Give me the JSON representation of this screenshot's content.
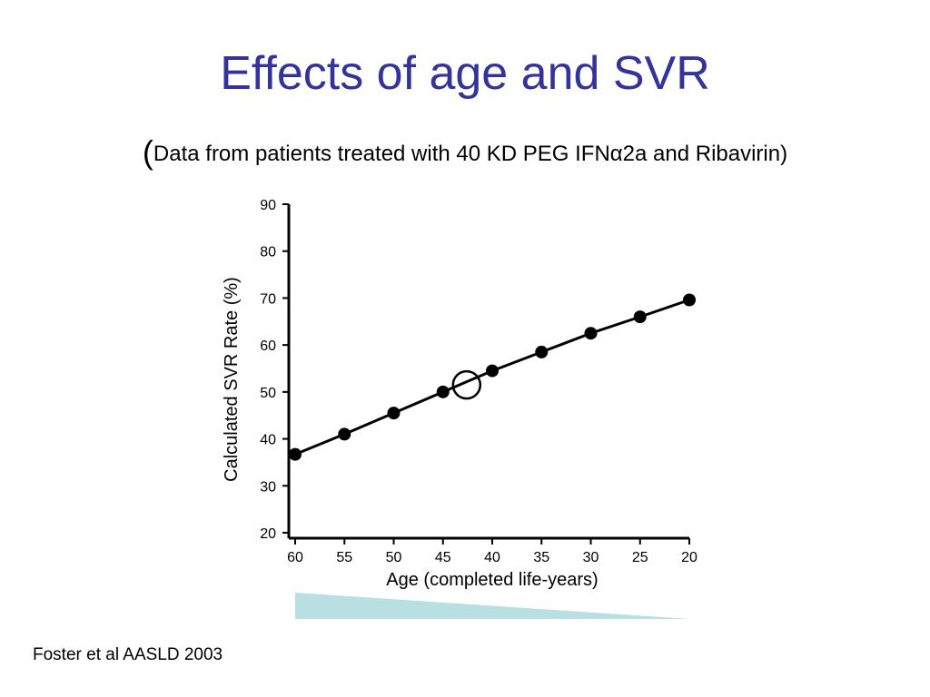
{
  "title": "Effects of age and SVR",
  "subtitle": {
    "open_paren": "(",
    "text": "Data from patients treated with 40 KD PEG IFNα2a and Ribavirin)"
  },
  "source": "Foster et al AASLD 2003",
  "chart_data": {
    "type": "line",
    "xlabel": "Age (completed life-years)",
    "ylabel": "Calculated SVR Rate (%)",
    "x_ticks": [
      60,
      55,
      50,
      45,
      40,
      35,
      30,
      25,
      20
    ],
    "y_ticks": [
      20,
      30,
      40,
      50,
      60,
      70,
      80,
      90
    ],
    "xlim": [
      60,
      20
    ],
    "ylim": [
      20,
      90
    ],
    "x_reversed": true,
    "grid": false,
    "series": [
      {
        "x": [
          60,
          55,
          50,
          45,
          40,
          35,
          30,
          25,
          20
        ],
        "y": [
          36.7,
          41.0,
          45.5,
          50.0,
          54.5,
          58.5,
          62.5,
          66.0,
          69.6
        ]
      }
    ],
    "highlight": {
      "x": 42.6,
      "y": 51.5,
      "marker": "open-circle"
    },
    "age_gradient_color": "#b8e0e3"
  }
}
